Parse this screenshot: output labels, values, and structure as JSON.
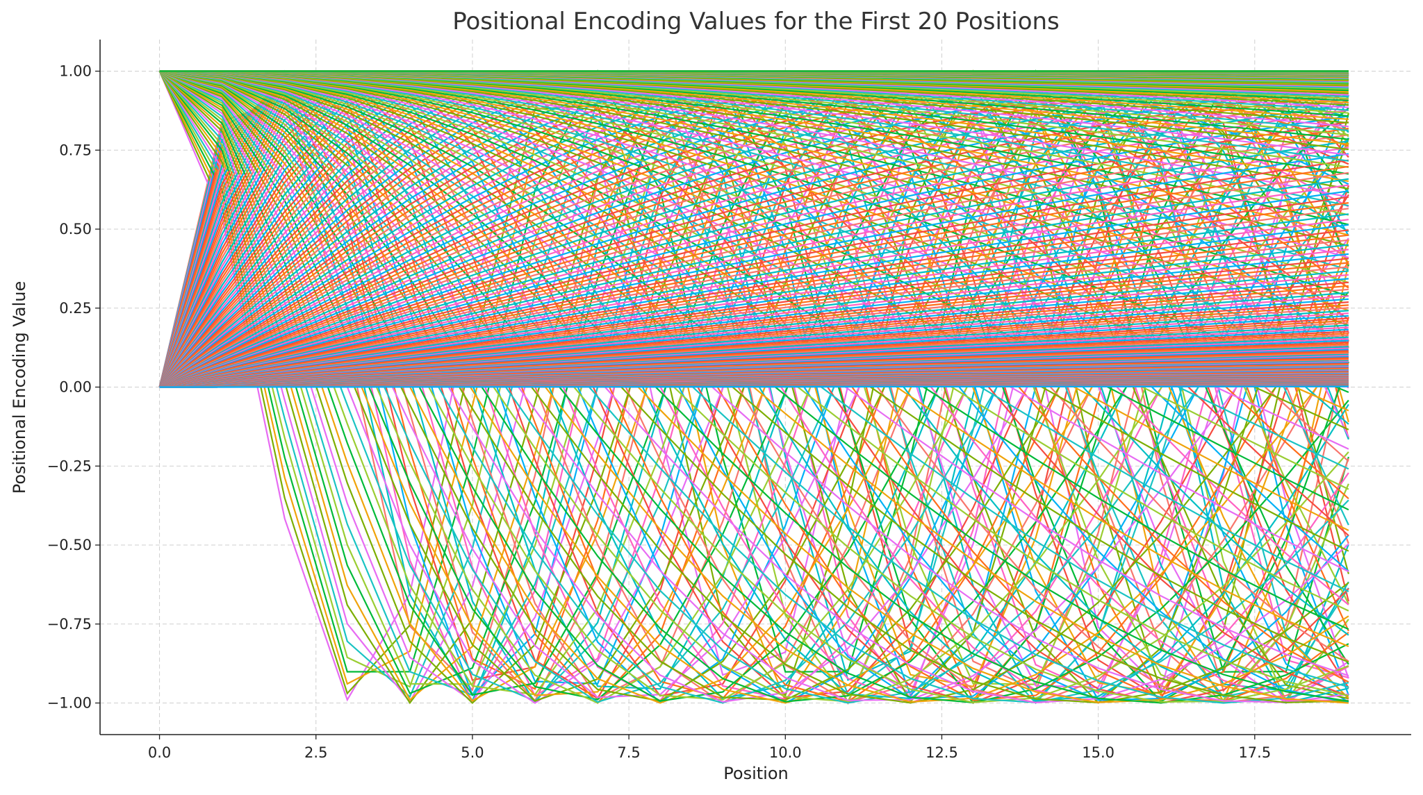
{
  "chart_data": {
    "type": "line",
    "title": "Positional Encoding Values for the First 20 Positions",
    "xlabel": "Position",
    "ylabel": "Positional Encoding Value",
    "x": [
      0,
      1,
      2,
      3,
      4,
      5,
      6,
      7,
      8,
      9,
      10,
      11,
      12,
      13,
      14,
      15,
      16,
      17,
      18,
      19
    ],
    "xlim": [
      -0.95,
      20.0
    ],
    "ylim": [
      -1.1,
      1.1
    ],
    "xticks": [
      "0.0",
      "2.5",
      "5.0",
      "7.5",
      "10.0",
      "12.5",
      "15.0",
      "17.5"
    ],
    "xtick_values": [
      0,
      2.5,
      5,
      7.5,
      10,
      12.5,
      15,
      17.5
    ],
    "yticks": [
      "1.00",
      "0.75",
      "0.50",
      "0.25",
      "0.00",
      "−0.25",
      "−0.50",
      "−0.75",
      "−1.00"
    ],
    "ytick_values": [
      1,
      0.75,
      0.5,
      0.25,
      0,
      -0.25,
      -0.5,
      -0.75,
      -1
    ],
    "grid": true,
    "legend": "none",
    "series_description": "sinusoidal positional encoding, one line per embedding dimension",
    "d_model": 512,
    "colors": [
      "#f8766d",
      "#e76bf3",
      "#00bfc4",
      "#7cae00",
      "#ff61c3",
      "#f0a30a",
      "#00b0f6",
      "#00ba38",
      "#f54b3f",
      "#9acd32",
      "#ff6e1a",
      "#19c3c3"
    ]
  }
}
